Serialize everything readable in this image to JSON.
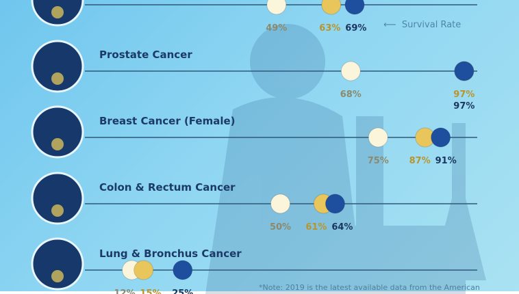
{
  "chart_data": {
    "type": "dot",
    "categories": [
      "",
      "Prostate Cancer",
      "Breast Cancer (Female)",
      "Colon & Rectum Cancer",
      "Lung & Bronchus Cancer"
    ],
    "series": [
      {
        "values": [
          49,
          68,
          75,
          50,
          12
        ],
        "color": "#fbf5dc",
        "label_color": "#8b8a6e"
      },
      {
        "values": [
          63,
          97,
          87,
          61,
          15
        ],
        "color": "#e9c65c",
        "label_color": "#b8952c"
      },
      {
        "values": [
          69,
          97,
          91,
          64,
          25
        ],
        "color": "#1d4f9e",
        "label_color": "#1b365d"
      }
    ],
    "value_suffix": "%",
    "annotation": "Survival Rate",
    "note": "*Note: 2019 is the latest available data from the American"
  }
}
